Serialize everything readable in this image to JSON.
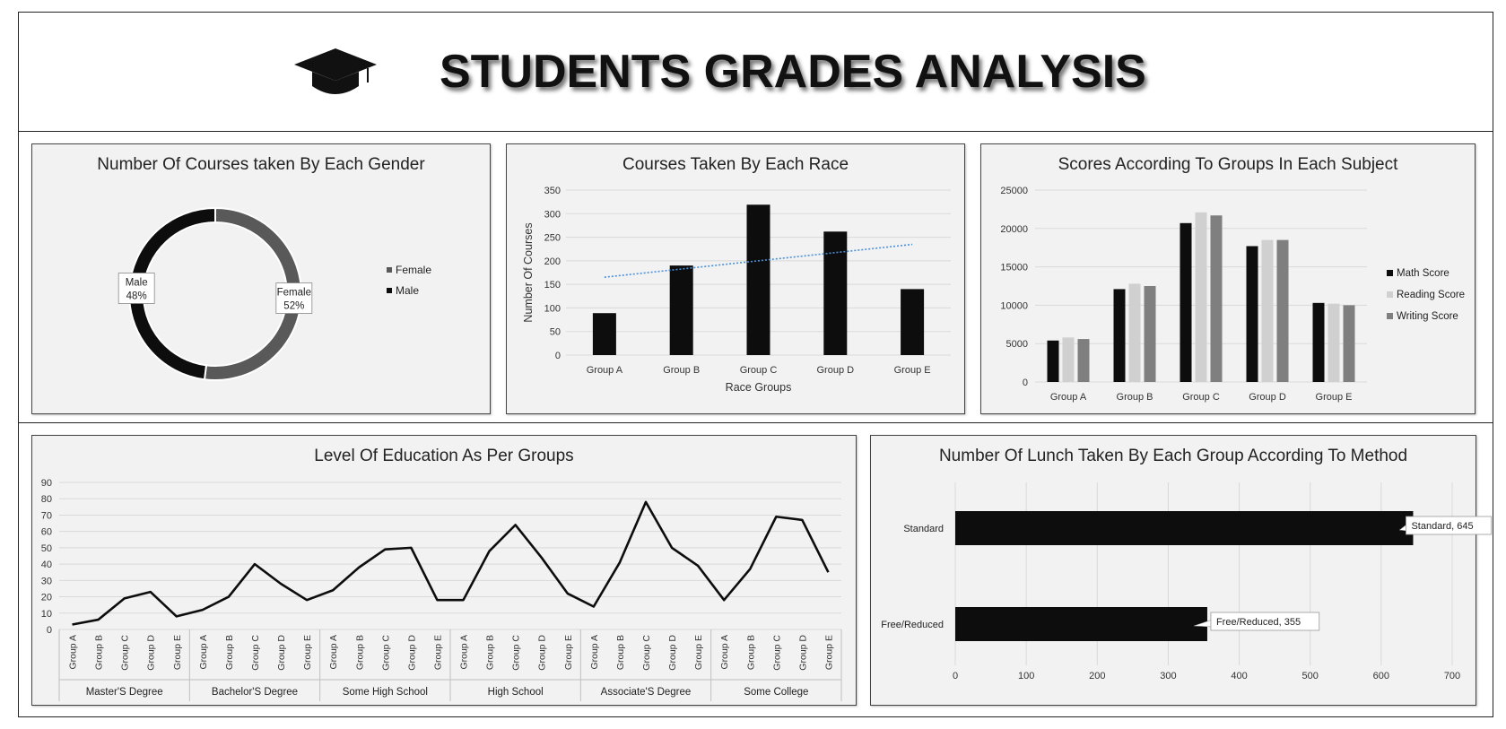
{
  "header": {
    "title": "STUDENTS GRADES ANALYSIS",
    "icon": "graduation-cap-icon"
  },
  "chart_data": [
    {
      "id": "gender",
      "type": "pie",
      "title": "Number Of Courses taken By Each Gender",
      "slices": [
        {
          "label": "Female",
          "percent": 52,
          "color": "#595959"
        },
        {
          "label": "Male",
          "percent": 48,
          "color": "#0d0d0d"
        }
      ],
      "legend": [
        "Female",
        "Male"
      ],
      "legend_position": "right",
      "data_labels": [
        {
          "name": "Female",
          "value": "52%"
        },
        {
          "name": "Male",
          "value": "48%"
        }
      ]
    },
    {
      "id": "race",
      "type": "bar",
      "title": "Courses Taken By Each Race",
      "categories": [
        "Group A",
        "Group B",
        "Group C",
        "Group D",
        "Group E"
      ],
      "values": [
        89,
        190,
        319,
        262,
        140
      ],
      "xlabel": "Race Groups",
      "ylabel": "Number Of Courses",
      "ylim": [
        0,
        350
      ],
      "yticks": [
        "0",
        "50",
        "100",
        "150",
        "200",
        "250",
        "300",
        "350"
      ],
      "trendline": {
        "style": "dotted",
        "color": "#4a90d9"
      },
      "color": "#0d0d0d",
      "grid": true
    },
    {
      "id": "scores",
      "type": "bar",
      "title": "Scores According To Groups In Each Subject",
      "categories": [
        "Group A",
        "Group B",
        "Group C",
        "Group D",
        "Group E"
      ],
      "series": [
        {
          "name": "Math Score",
          "values": [
            5400,
            12100,
            20700,
            17700,
            10300
          ],
          "color": "#0d0d0d"
        },
        {
          "name": "Reading Score",
          "values": [
            5800,
            12800,
            22100,
            18500,
            10200
          ],
          "color": "#d0d0d0"
        },
        {
          "name": "Writing Score",
          "values": [
            5600,
            12500,
            21700,
            18500,
            10000
          ],
          "color": "#7f7f7f"
        }
      ],
      "ylim": [
        0,
        25000
      ],
      "yticks": [
        "0",
        "5000",
        "10000",
        "15000",
        "20000",
        "25000"
      ],
      "legend_position": "right",
      "grid": true
    },
    {
      "id": "education",
      "type": "line",
      "title": "Level Of Education As Per Groups",
      "groups": [
        "Master'S Degree",
        "Bachelor'S Degree",
        "Some High School",
        "High School",
        "Associate'S Degree",
        "Some College"
      ],
      "subcategories": [
        "Group A",
        "Group B",
        "Group C",
        "Group D",
        "Group E"
      ],
      "values": [
        3,
        6,
        19,
        23,
        8,
        12,
        20,
        40,
        28,
        18,
        24,
        38,
        49,
        50,
        18,
        18,
        48,
        64,
        44,
        22,
        14,
        41,
        78,
        50,
        39,
        18,
        37,
        69,
        67,
        35
      ],
      "ylim": [
        0,
        90
      ],
      "yticks": [
        "0",
        "10",
        "20",
        "30",
        "40",
        "50",
        "60",
        "70",
        "80",
        "90"
      ],
      "color": "#0d0d0d",
      "grid": true
    },
    {
      "id": "lunch",
      "type": "bar",
      "orientation": "horizontal",
      "title": "Number Of Lunch Taken By Each Group According To Method",
      "categories": [
        "Standard",
        "Free/Reduced"
      ],
      "values": [
        645,
        355
      ],
      "data_labels": [
        "Standard, 645",
        "Free/Reduced, 355"
      ],
      "xlim": [
        0,
        700
      ],
      "xticks": [
        "0",
        "100",
        "200",
        "300",
        "400",
        "500",
        "600",
        "700"
      ],
      "color": "#0d0d0d",
      "grid": true
    }
  ]
}
